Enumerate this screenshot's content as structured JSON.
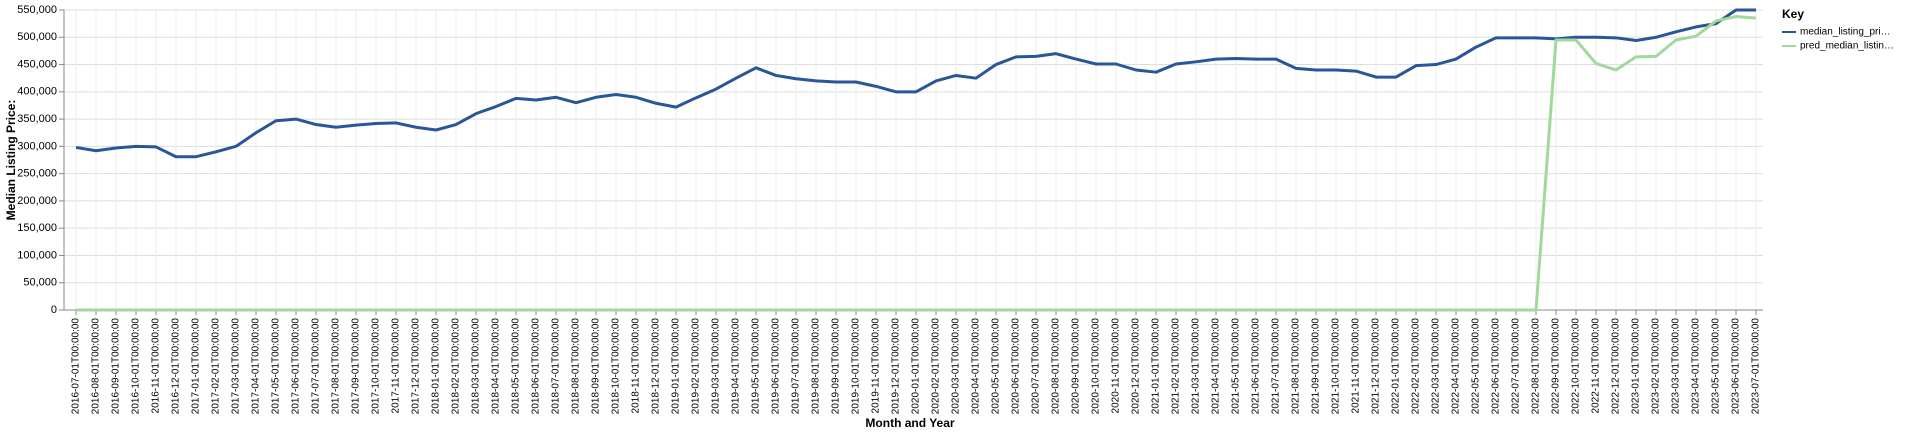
{
  "chart_data": {
    "type": "line",
    "x_label": "Month and Year",
    "y_label": "Median Listing Price:",
    "legend_title": "Key",
    "legend": "right",
    "grid": true,
    "categories": [
      "2016-07-01T00:00:00",
      "2016-08-01T00:00:00",
      "2016-09-01T00:00:00",
      "2016-10-01T00:00:00",
      "2016-11-01T00:00:00",
      "2016-12-01T00:00:00",
      "2017-01-01T00:00:00",
      "2017-02-01T00:00:00",
      "2017-03-01T00:00:00",
      "2017-04-01T00:00:00",
      "2017-05-01T00:00:00",
      "2017-06-01T00:00:00",
      "2017-07-01T00:00:00",
      "2017-08-01T00:00:00",
      "2017-09-01T00:00:00",
      "2017-10-01T00:00:00",
      "2017-11-01T00:00:00",
      "2017-12-01T00:00:00",
      "2018-01-01T00:00:00",
      "2018-02-01T00:00:00",
      "2018-03-01T00:00:00",
      "2018-04-01T00:00:00",
      "2018-05-01T00:00:00",
      "2018-06-01T00:00:00",
      "2018-07-01T00:00:00",
      "2018-08-01T00:00:00",
      "2018-09-01T00:00:00",
      "2018-10-01T00:00:00",
      "2018-11-01T00:00:00",
      "2018-12-01T00:00:00",
      "2019-01-01T00:00:00",
      "2019-02-01T00:00:00",
      "2019-03-01T00:00:00",
      "2019-04-01T00:00:00",
      "2019-05-01T00:00:00",
      "2019-06-01T00:00:00",
      "2019-07-01T00:00:00",
      "2019-08-01T00:00:00",
      "2019-09-01T00:00:00",
      "2019-10-01T00:00:00",
      "2019-11-01T00:00:00",
      "2019-12-01T00:00:00",
      "2020-01-01T00:00:00",
      "2020-02-01T00:00:00",
      "2020-03-01T00:00:00",
      "2020-04-01T00:00:00",
      "2020-05-01T00:00:00",
      "2020-06-01T00:00:00",
      "2020-07-01T00:00:00",
      "2020-08-01T00:00:00",
      "2020-09-01T00:00:00",
      "2020-10-01T00:00:00",
      "2020-11-01T00:00:00",
      "2020-12-01T00:00:00",
      "2021-01-01T00:00:00",
      "2021-02-01T00:00:00",
      "2021-03-01T00:00:00",
      "2021-04-01T00:00:00",
      "2021-05-01T00:00:00",
      "2021-06-01T00:00:00",
      "2021-07-01T00:00:00",
      "2021-08-01T00:00:00",
      "2021-09-01T00:00:00",
      "2021-10-01T00:00:00",
      "2021-11-01T00:00:00",
      "2021-12-01T00:00:00",
      "2022-01-01T00:00:00",
      "2022-02-01T00:00:00",
      "2022-03-01T00:00:00",
      "2022-04-01T00:00:00",
      "2022-05-01T00:00:00",
      "2022-06-01T00:00:00",
      "2022-07-01T00:00:00",
      "2022-08-01T00:00:00",
      "2022-09-01T00:00:00",
      "2022-10-01T00:00:00",
      "2022-11-01T00:00:00",
      "2022-12-01T00:00:00",
      "2023-01-01T00:00:00",
      "2023-02-01T00:00:00",
      "2023-03-01T00:00:00",
      "2023-04-01T00:00:00",
      "2023-05-01T00:00:00",
      "2023-06-01T00:00:00",
      "2023-07-01T00:00:00"
    ],
    "series": [
      {
        "name": "median_listing_pri…",
        "color": "#2a5599",
        "values": [
          298000,
          292000,
          297000,
          300000,
          299000,
          281000,
          281000,
          290000,
          300000,
          325000,
          347000,
          350000,
          340000,
          335000,
          339000,
          342000,
          343000,
          335000,
          330000,
          340000,
          360000,
          373000,
          388000,
          385000,
          390000,
          380000,
          390000,
          395000,
          390000,
          379000,
          372000,
          389000,
          405000,
          425000,
          444000,
          430000,
          424000,
          420000,
          418000,
          418000,
          410000,
          400000,
          400000,
          420000,
          430000,
          425000,
          450000,
          464000,
          465000,
          470000,
          460000,
          451000,
          451000,
          440000,
          436000,
          451000,
          455000,
          460000,
          461000,
          460000,
          460000,
          443000,
          440000,
          440000,
          438000,
          427000,
          427000,
          448000,
          450000,
          460000,
          482000,
          499000,
          499000,
          499000,
          497000,
          500000,
          500000,
          499000,
          494000,
          500000,
          510000,
          519000,
          525000,
          550000,
          550000
        ]
      },
      {
        "name": "pred_median_listin…",
        "color": "#a1d99b",
        "values": [
          0,
          0,
          0,
          0,
          0,
          0,
          0,
          0,
          0,
          0,
          0,
          0,
          0,
          0,
          0,
          0,
          0,
          0,
          0,
          0,
          0,
          0,
          0,
          0,
          0,
          0,
          0,
          0,
          0,
          0,
          0,
          0,
          0,
          0,
          0,
          0,
          0,
          0,
          0,
          0,
          0,
          0,
          0,
          0,
          0,
          0,
          0,
          0,
          0,
          0,
          0,
          0,
          0,
          0,
          0,
          0,
          0,
          0,
          0,
          0,
          0,
          0,
          0,
          0,
          0,
          0,
          0,
          0,
          0,
          0,
          0,
          0,
          0,
          0,
          495000,
          495000,
          452000,
          440000,
          464000,
          465000,
          495000,
          502000,
          530000,
          538000,
          535000
        ]
      }
    ],
    "ylim": [
      0,
      550000
    ],
    "yticks": [
      0,
      {
        "value": 50000,
        "label": "50,000"
      },
      {
        "value": 100000,
        "label": "100,000"
      },
      {
        "value": 150000,
        "label": "150,000"
      },
      {
        "value": 200000,
        "label": "200,000"
      },
      {
        "value": 250000,
        "label": "250,000"
      },
      {
        "value": 300000,
        "label": "300,000"
      },
      {
        "value": 350000,
        "label": "350,000"
      },
      {
        "value": 400000,
        "label": "400,000"
      },
      {
        "value": 450000,
        "label": "450,000"
      },
      {
        "value": 500000,
        "label": "500,000"
      },
      {
        "value": 550000,
        "label": "550,000"
      }
    ]
  }
}
